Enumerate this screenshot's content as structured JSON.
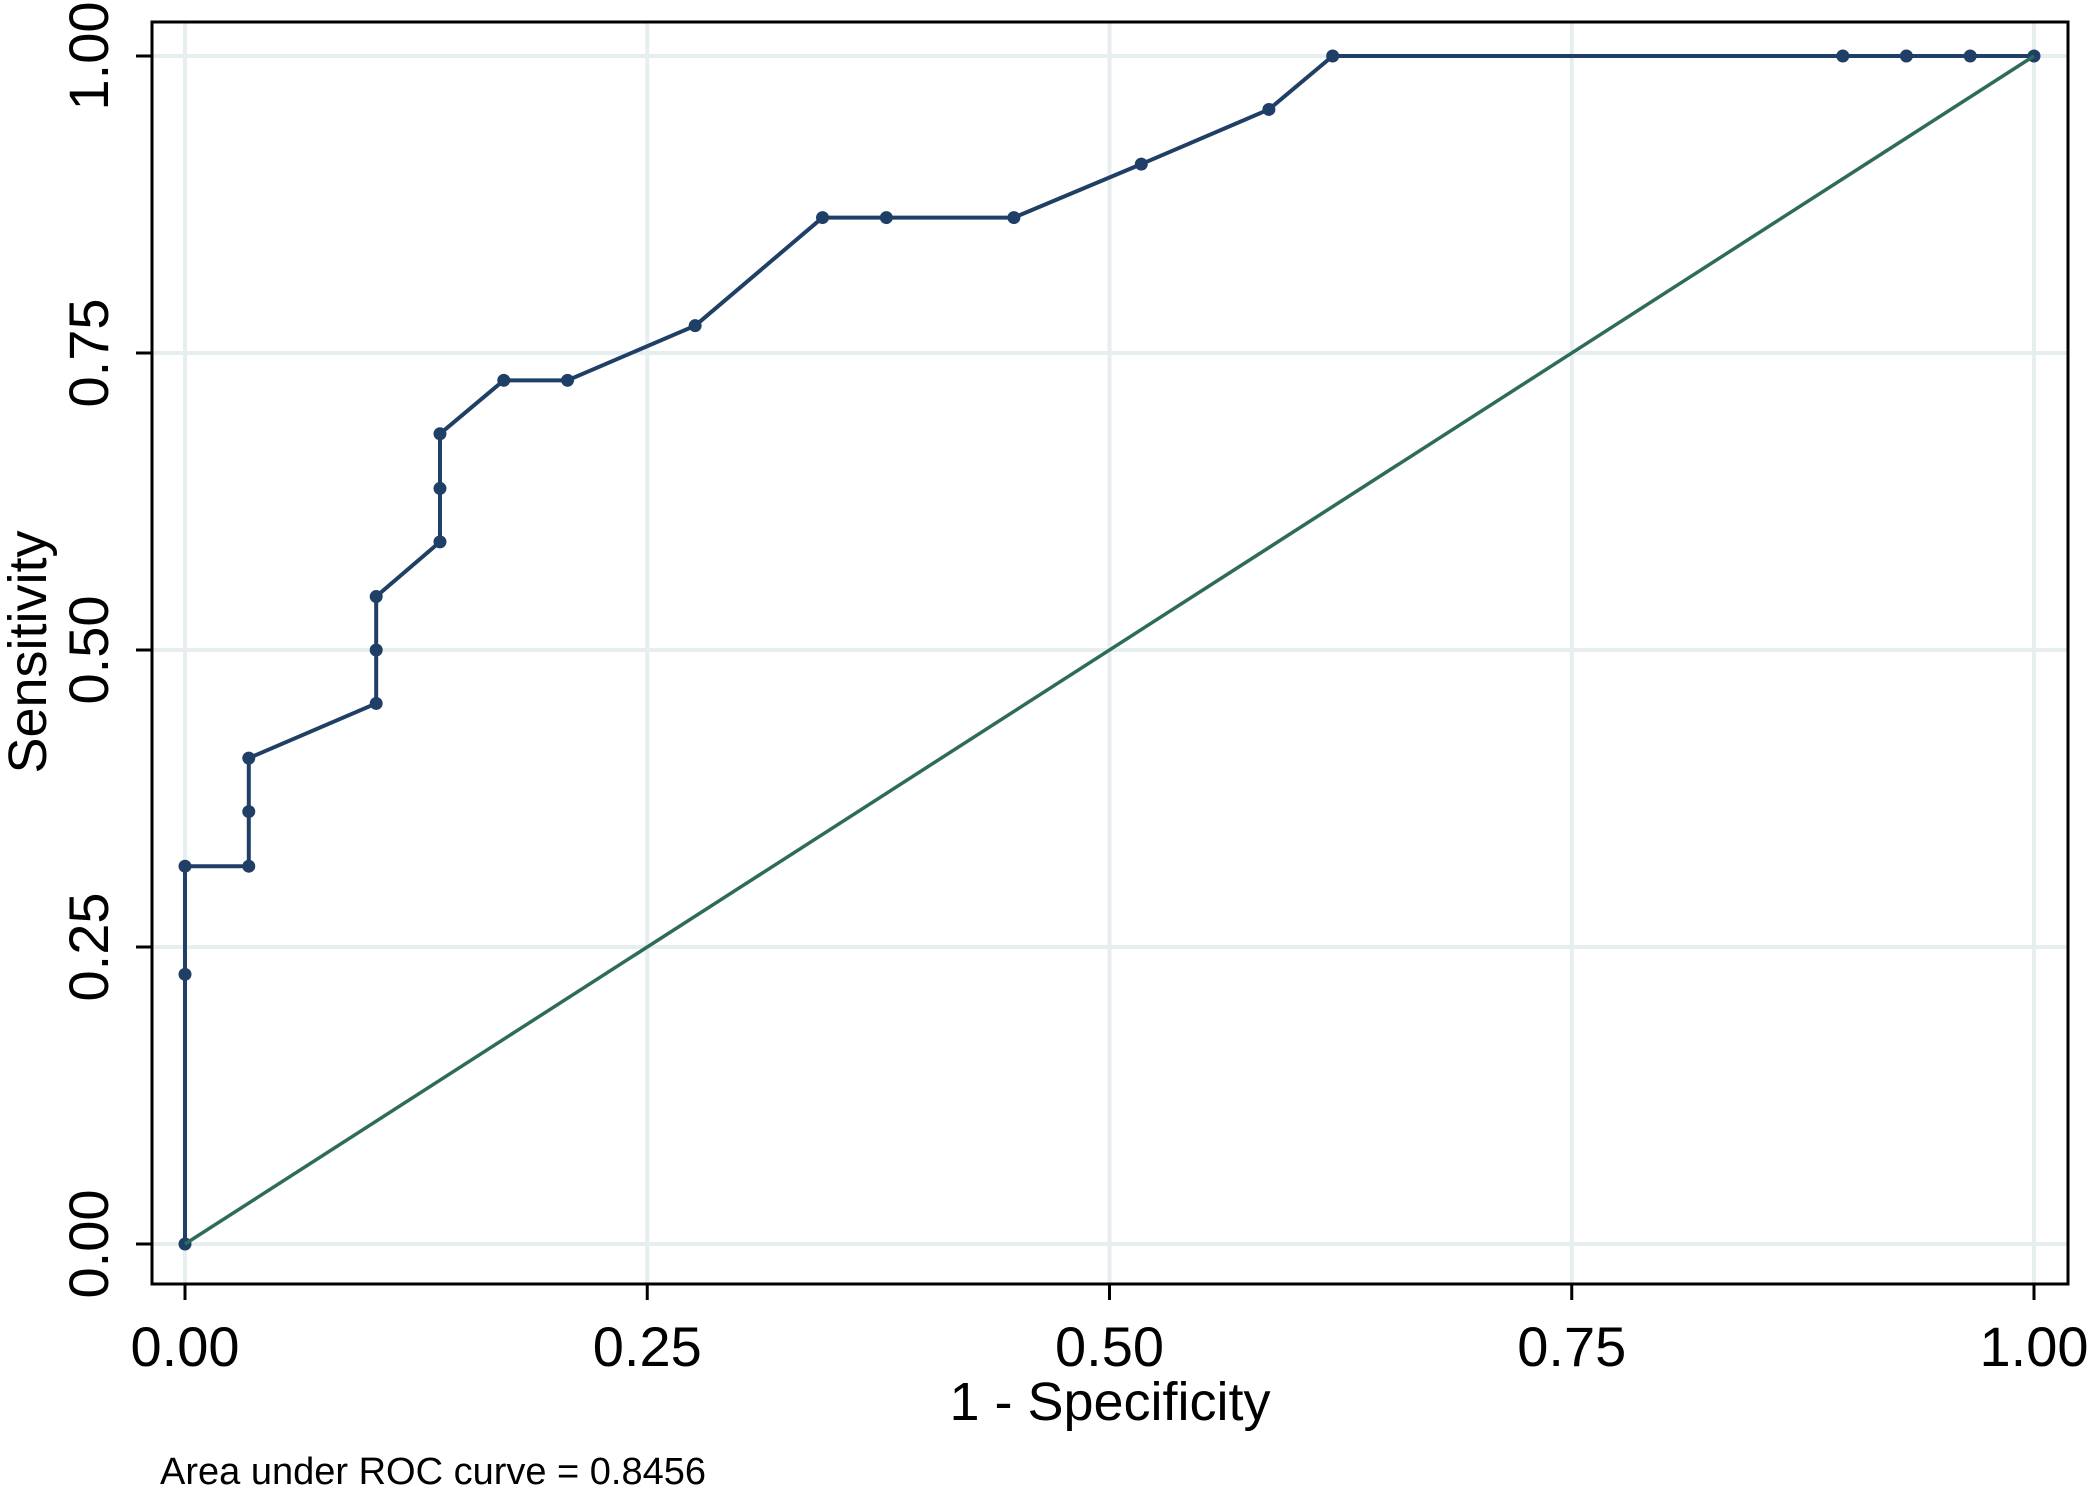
{
  "chart_data": {
    "type": "line",
    "xlabel": "1 - Specificity",
    "ylabel": "Sensitivity",
    "xlim": [
      0,
      1
    ],
    "ylim": [
      0,
      1
    ],
    "xticks": [
      "0.00",
      "0.25",
      "0.50",
      "0.75",
      "1.00"
    ],
    "yticks": [
      "0.00",
      "0.25",
      "0.50",
      "0.75",
      "1.00"
    ],
    "grid": true,
    "note": "Area under ROC curve = 0.8456",
    "series": [
      {
        "kind": "roc",
        "color": "#1f3f66",
        "markers": true,
        "points": [
          [
            0.0,
            0.0
          ],
          [
            0.0,
            0.227
          ],
          [
            0.0,
            0.318
          ],
          [
            0.0345,
            0.318
          ],
          [
            0.0345,
            0.364
          ],
          [
            0.0345,
            0.409
          ],
          [
            0.1034,
            0.455
          ],
          [
            0.1034,
            0.5
          ],
          [
            0.1034,
            0.545
          ],
          [
            0.1379,
            0.591
          ],
          [
            0.1379,
            0.636
          ],
          [
            0.1379,
            0.682
          ],
          [
            0.1724,
            0.727
          ],
          [
            0.2069,
            0.727
          ],
          [
            0.2759,
            0.773
          ],
          [
            0.3448,
            0.864
          ],
          [
            0.3793,
            0.864
          ],
          [
            0.4483,
            0.864
          ],
          [
            0.5172,
            0.909
          ],
          [
            0.5862,
            0.955
          ],
          [
            0.6207,
            1.0
          ],
          [
            0.8966,
            1.0
          ],
          [
            0.931,
            1.0
          ],
          [
            0.9655,
            1.0
          ],
          [
            1.0,
            1.0
          ]
        ]
      },
      {
        "kind": "reference",
        "color": "#2e6b5a",
        "markers": false,
        "points": [
          [
            0,
            0
          ],
          [
            1,
            1
          ]
        ]
      }
    ]
  }
}
